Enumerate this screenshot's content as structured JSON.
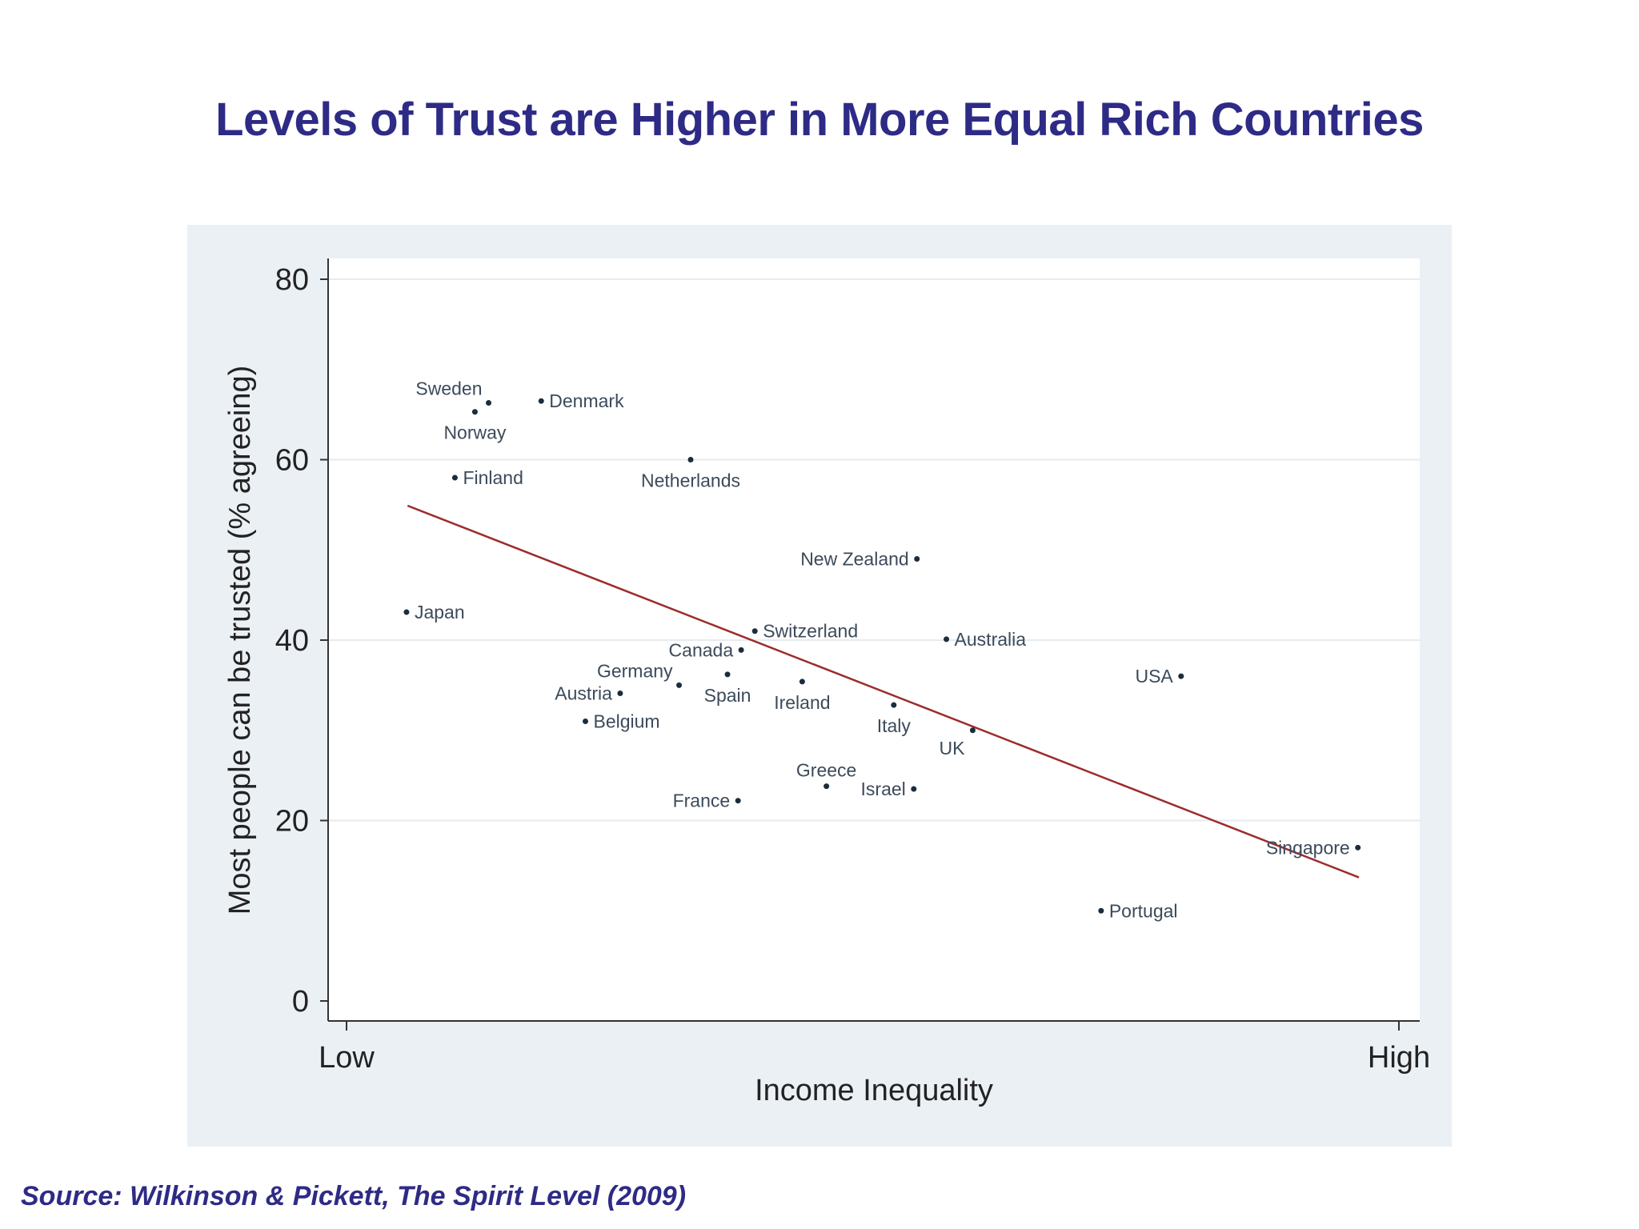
{
  "slide": {
    "title": "Levels of Trust are Higher in More Equal Rich Countries",
    "source": "Source: Wilkinson & Pickett, The Spirit Level (2009)"
  },
  "colors": {
    "title": "#2e2b86",
    "plot_outer_bg": "#ebf0f5",
    "plot_inner_bg": "#ffffff",
    "point": "#1a2d3e",
    "label": "#3c4a5a",
    "trend_line": "#9b2d2d",
    "axis": "#333333"
  },
  "chart_data": {
    "type": "scatter",
    "title": "Levels of Trust are Higher in More Equal Rich Countries",
    "xlabel": "Income Inequality",
    "ylabel": "Most people can be trusted (% agreeing)",
    "x_tick_labels": [
      "Low",
      "High"
    ],
    "x_scale_note": "Income inequality scaled 0 (Low) to 100 (High)",
    "xlim": [
      0,
      100
    ],
    "ylim": [
      0,
      80
    ],
    "y_ticks": [
      0,
      20,
      40,
      60,
      80
    ],
    "grid": true,
    "series": [
      {
        "name": "Countries",
        "points": [
          {
            "country": "Sweden",
            "x": 13.5,
            "y": 66.3,
            "label_side": "above-left"
          },
          {
            "country": "Norway",
            "x": 12.2,
            "y": 65.3,
            "label_side": "below"
          },
          {
            "country": "Denmark",
            "x": 18.5,
            "y": 66.5,
            "label_side": "right"
          },
          {
            "country": "Finland",
            "x": 10.3,
            "y": 58.0,
            "label_side": "right"
          },
          {
            "country": "Netherlands",
            "x": 32.7,
            "y": 60.0,
            "label_side": "below"
          },
          {
            "country": "Japan",
            "x": 5.7,
            "y": 43.1,
            "label_side": "right"
          },
          {
            "country": "New Zealand",
            "x": 54.2,
            "y": 49.0,
            "label_side": "left"
          },
          {
            "country": "Switzerland",
            "x": 38.8,
            "y": 41.0,
            "label_side": "right"
          },
          {
            "country": "Canada",
            "x": 37.5,
            "y": 38.9,
            "label_side": "left"
          },
          {
            "country": "Australia",
            "x": 57.0,
            "y": 40.1,
            "label_side": "right"
          },
          {
            "country": "Germany",
            "x": 31.6,
            "y": 35.0,
            "label_side": "above-left"
          },
          {
            "country": "Spain",
            "x": 36.2,
            "y": 36.2,
            "label_side": "below"
          },
          {
            "country": "Austria",
            "x": 26.0,
            "y": 34.1,
            "label_side": "left"
          },
          {
            "country": "Ireland",
            "x": 43.3,
            "y": 35.4,
            "label_side": "below"
          },
          {
            "country": "Italy",
            "x": 52.0,
            "y": 32.8,
            "label_side": "below"
          },
          {
            "country": "USA",
            "x": 79.3,
            "y": 36.0,
            "label_side": "left"
          },
          {
            "country": "Belgium",
            "x": 22.7,
            "y": 31.0,
            "label_side": "right"
          },
          {
            "country": "UK",
            "x": 59.5,
            "y": 30.0,
            "label_side": "below-left"
          },
          {
            "country": "Greece",
            "x": 45.6,
            "y": 23.8,
            "label_side": "above"
          },
          {
            "country": "Israel",
            "x": 53.9,
            "y": 23.5,
            "label_side": "left"
          },
          {
            "country": "France",
            "x": 37.2,
            "y": 22.2,
            "label_side": "left"
          },
          {
            "country": "Singapore",
            "x": 96.1,
            "y": 17.0,
            "label_side": "left"
          },
          {
            "country": "Portugal",
            "x": 71.7,
            "y": 10.0,
            "label_side": "right"
          }
        ]
      }
    ],
    "trend_line": {
      "x": [
        5.8,
        96.2
      ],
      "y": [
        54.9,
        13.7
      ]
    }
  }
}
